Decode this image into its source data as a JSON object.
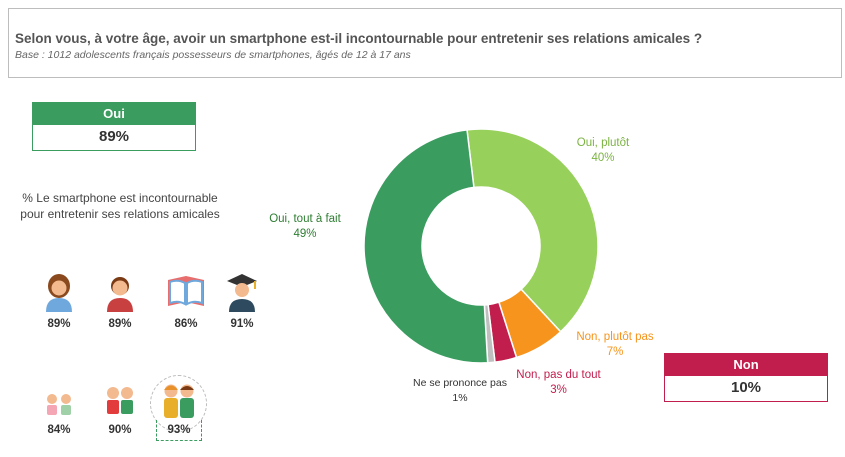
{
  "header": {
    "title": "Selon vous, à votre âge, avoir un smartphone est-il incontournable pour entretenir ses relations amicales ?",
    "subtitle": "Base : 1012 adolescents français possesseurs de smartphones, âgés de 12 à 17 ans"
  },
  "summary": {
    "oui": {
      "label": "Oui",
      "value": "89%",
      "color": "#3a9c5f"
    },
    "non": {
      "label": "Non",
      "value": "10%",
      "color": "#c21e4d"
    }
  },
  "description": "% Le smartphone est incontournable pour entretenir ses relations amicales",
  "segments": [
    {
      "icon": "girl-icon",
      "value": "89%"
    },
    {
      "icon": "boy-icon",
      "value": "89%"
    },
    {
      "icon": "book-icon",
      "value": "86%"
    },
    {
      "icon": "graduate-icon",
      "value": "91%"
    },
    {
      "icon": "two-small-children-icon",
      "value": "84%"
    },
    {
      "icon": "two-children-icon",
      "value": "90%"
    },
    {
      "icon": "two-older-children-icon",
      "value": "93%"
    }
  ],
  "chart_data": {
    "type": "pie",
    "donut": true,
    "categories": [
      "Oui, tout à fait",
      "Oui, plutôt",
      "Non, plutôt pas",
      "Non, pas du tout",
      "Ne se prononce pas"
    ],
    "values": [
      49,
      40,
      7,
      3,
      1
    ],
    "value_labels": [
      "49%",
      "40%",
      "7%",
      "3%",
      "1%"
    ],
    "colors": [
      "#3a9c5f",
      "#97d05a",
      "#f7941d",
      "#c21e4d",
      "#bfbfbf"
    ],
    "label_colors": [
      "#2e7d32",
      "#7cb342",
      "#f7941d",
      "#c21e4d",
      "#333333"
    ]
  }
}
